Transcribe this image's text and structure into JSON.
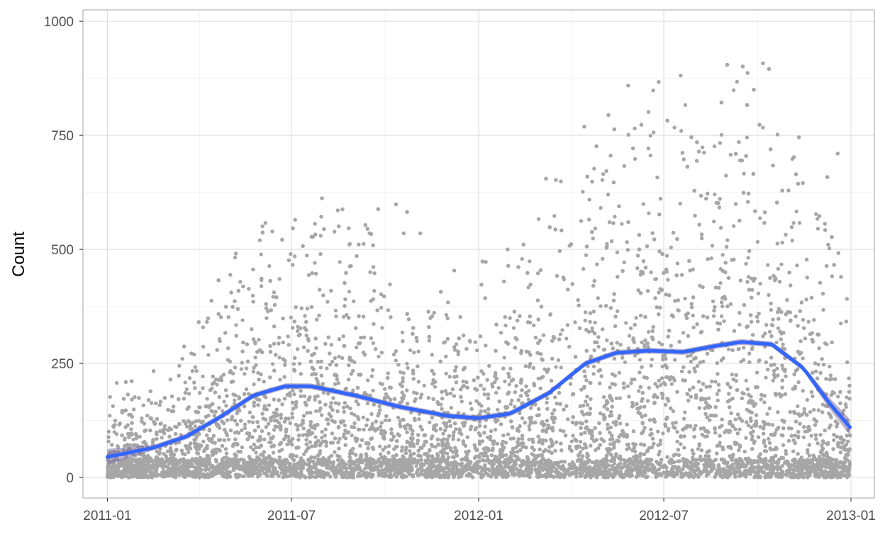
{
  "chart_data": {
    "type": "scatter",
    "title": "",
    "xlabel": "",
    "ylabel": "Count",
    "x_range": [
      "2010-12-08",
      "2013-01-24"
    ],
    "ylim": [
      -45,
      1025
    ],
    "x_ticks": [
      "2011-01",
      "2011-07",
      "2012-01",
      "2012-07",
      "2013-01"
    ],
    "y_ticks": [
      0,
      250,
      500,
      750,
      1000
    ],
    "grid": true,
    "legend": "none",
    "series": [
      {
        "kind": "points",
        "color": "#a6a6a6",
        "note_density": "hourly counts; approx. 17,000 observations spanning 2011-01-01 to 2012-12-31",
        "envelope": [
          {
            "x": "2011-01",
            "y_max": 220
          },
          {
            "x": "2011-02",
            "y_max": 240
          },
          {
            "x": "2011-03",
            "y_max": 290
          },
          {
            "x": "2011-04",
            "y_max": 400
          },
          {
            "x": "2011-05",
            "y_max": 600
          },
          {
            "x": "2011-06",
            "y_max": 610
          },
          {
            "x": "2011-07",
            "y_max": 600
          },
          {
            "x": "2011-08",
            "y_max": 640
          },
          {
            "x": "2011-09",
            "y_max": 600
          },
          {
            "x": "2011-10",
            "y_max": 610
          },
          {
            "x": "2011-11",
            "y_max": 500
          },
          {
            "x": "2011-12",
            "y_max": 460
          },
          {
            "x": "2012-01",
            "y_max": 500
          },
          {
            "x": "2012-02",
            "y_max": 540
          },
          {
            "x": "2012-03",
            "y_max": 820
          },
          {
            "x": "2012-04",
            "y_max": 800
          },
          {
            "x": "2012-05",
            "y_max": 870
          },
          {
            "x": "2012-06",
            "y_max": 880
          },
          {
            "x": "2012-07",
            "y_max": 880
          },
          {
            "x": "2012-08",
            "y_max": 900
          },
          {
            "x": "2012-09",
            "y_max": 970
          },
          {
            "x": "2012-10",
            "y_max": 960
          },
          {
            "x": "2012-11",
            "y_max": 720
          },
          {
            "x": "2012-12",
            "y_max": 760
          }
        ]
      },
      {
        "kind": "smooth",
        "color": "#3366ff",
        "band_color": "#7d6fa0",
        "points": [
          {
            "x": "2011-01-01",
            "y": 45
          },
          {
            "x": "2011-02-15",
            "y": 65
          },
          {
            "x": "2011-03-20",
            "y": 90
          },
          {
            "x": "2011-04-20",
            "y": 130
          },
          {
            "x": "2011-05-25",
            "y": 180
          },
          {
            "x": "2011-06-25",
            "y": 200
          },
          {
            "x": "2011-07-20",
            "y": 200
          },
          {
            "x": "2011-09-01",
            "y": 180
          },
          {
            "x": "2011-10-15",
            "y": 155
          },
          {
            "x": "2011-12-01",
            "y": 135
          },
          {
            "x": "2012-01-01",
            "y": 130
          },
          {
            "x": "2012-02-01",
            "y": 140
          },
          {
            "x": "2012-03-10",
            "y": 185
          },
          {
            "x": "2012-04-15",
            "y": 250
          },
          {
            "x": "2012-05-15",
            "y": 273
          },
          {
            "x": "2012-06-15",
            "y": 278
          },
          {
            "x": "2012-07-20",
            "y": 275
          },
          {
            "x": "2012-08-20",
            "y": 288
          },
          {
            "x": "2012-09-15",
            "y": 297
          },
          {
            "x": "2012-10-15",
            "y": 292
          },
          {
            "x": "2012-11-15",
            "y": 240
          },
          {
            "x": "2012-12-10",
            "y": 165
          },
          {
            "x": "2012-12-31",
            "y": 110
          }
        ]
      }
    ]
  }
}
